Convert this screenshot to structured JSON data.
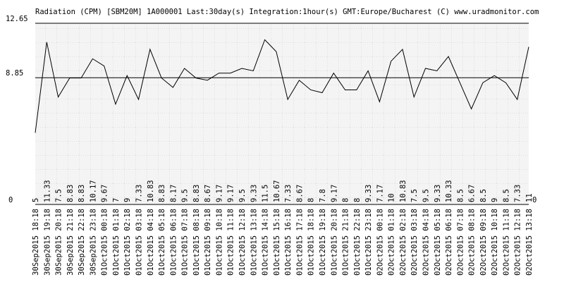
{
  "chart_data": {
    "type": "line",
    "title": "Radiation (CPM) [SBM20M] 1A000001 Last:30day(s) Integration:1hour(s) GMT:Europe/Bucharest (C) www.uradmonitor.com",
    "categories": [
      "30Sep2015 18:18",
      "30Sep2015 19:18",
      "30Sep2015 20:18",
      "30Sep2015 21:18",
      "30Sep2015 22:18",
      "30Sep2015 23:18",
      "01Oct2015 00:18",
      "01Oct2015 01:18",
      "01Oct2015 02:18",
      "01Oct2015 03:18",
      "01Oct2015 04:18",
      "01Oct2015 05:18",
      "01Oct2015 06:18",
      "01Oct2015 07:18",
      "01Oct2015 08:18",
      "01Oct2015 09:18",
      "01Oct2015 10:18",
      "01Oct2015 11:18",
      "01Oct2015 12:18",
      "01Oct2015 13:18",
      "01Oct2015 14:18",
      "01Oct2015 15:18",
      "01Oct2015 16:18",
      "01Oct2015 17:18",
      "01Oct2015 18:18",
      "01Oct2015 19:18",
      "01Oct2015 20:18",
      "01Oct2015 21:18",
      "01Oct2015 22:18",
      "01Oct2015 23:18",
      "02Oct2015 00:18",
      "02Oct2015 01:18",
      "02Oct2015 02:18",
      "02Oct2015 03:18",
      "02Oct2015 04:18",
      "02Oct2015 05:18",
      "02Oct2015 06:18",
      "02Oct2015 07:18",
      "02Oct2015 08:18",
      "02Oct2015 09:18",
      "02Oct2015 10:18",
      "02Oct2015 11:18",
      "02Oct2015 12:18",
      "02Oct2015 13:18"
    ],
    "values": [
      5,
      11.33,
      7.5,
      8.83,
      8.83,
      10.17,
      9.67,
      7,
      9,
      7.33,
      10.83,
      8.83,
      8.17,
      9.5,
      8.83,
      8.67,
      9.17,
      9.17,
      9.5,
      9.33,
      11.5,
      10.67,
      7.33,
      8.67,
      8,
      7.8,
      9.17,
      8,
      8,
      9.33,
      7.17,
      10,
      10.83,
      7.5,
      9.5,
      9.33,
      10.33,
      8.5,
      6.67,
      8.5,
      9,
      8.5,
      7.33,
      11
    ],
    "color": "#000000",
    "ylim": [
      0,
      12.65
    ],
    "yticks": [
      0,
      8.85,
      12.65
    ],
    "grid": true
  }
}
